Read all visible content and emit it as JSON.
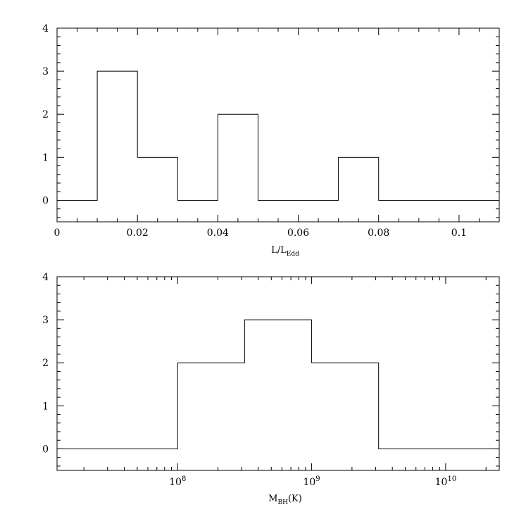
{
  "chart_data": [
    {
      "type": "histogram",
      "xlabel": {
        "main": "L/L",
        "sub": "Edd"
      },
      "ylabel": "",
      "xlim": [
        0,
        0.11
      ],
      "ylim": [
        -0.5,
        4
      ],
      "x_ticks": [
        0,
        0.02,
        0.04,
        0.06,
        0.08,
        0.1
      ],
      "x_tick_labels": [
        "0",
        "0.02",
        "0.04",
        "0.06",
        "0.08",
        "0.1"
      ],
      "y_ticks": [
        0,
        1,
        2,
        3,
        4
      ],
      "y_tick_labels": [
        "0",
        "1",
        "2",
        "3",
        "4"
      ],
      "bin_edges": [
        0,
        0.01,
        0.02,
        0.03,
        0.04,
        0.05,
        0.06,
        0.07,
        0.08,
        0.11
      ],
      "counts": [
        0,
        3,
        1,
        0,
        2,
        0,
        0,
        1,
        0
      ],
      "grid": false
    },
    {
      "type": "histogram",
      "x_scale": "log",
      "xlabel": {
        "main": "M",
        "sub": "BH",
        "suffix": "(K)"
      },
      "ylabel": "",
      "xlim": [
        12600000,
        25100000000
      ],
      "ylim": [
        -0.5,
        4
      ],
      "x_tick_labels": [
        {
          "base": "10",
          "exp": "8",
          "value": 100000000
        },
        {
          "base": "10",
          "exp": "9",
          "value": 1000000000
        },
        {
          "base": "10",
          "exp": "10",
          "value": 10000000000
        }
      ],
      "y_ticks": [
        0,
        1,
        2,
        3,
        4
      ],
      "y_tick_labels": [
        "0",
        "1",
        "2",
        "3",
        "4"
      ],
      "bin_edges": [
        12600000,
        100000000,
        316000000,
        1000000000,
        3160000000,
        25100000000
      ],
      "counts": [
        0,
        2,
        3,
        2,
        0
      ],
      "grid": false
    }
  ]
}
